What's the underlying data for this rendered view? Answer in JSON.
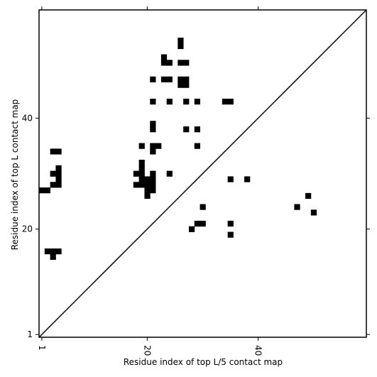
{
  "chart_data": {
    "type": "heatmap",
    "xlabel": "Residue index of top L/5 contact map",
    "ylabel": "Residue index of top L contact map",
    "xlim": [
      0.5,
      59.5
    ],
    "ylim": [
      0.5,
      59.5
    ],
    "x_ticks": [
      {
        "value": 1,
        "label": "1"
      },
      {
        "value": 20,
        "label": "20"
      },
      {
        "value": 40,
        "label": "40"
      }
    ],
    "y_ticks": [
      {
        "value": 1,
        "label": "1"
      },
      {
        "value": 20,
        "label": "20"
      },
      {
        "value": 40,
        "label": "40"
      }
    ],
    "diagonal": true,
    "cell_color": "#000000",
    "background": "#ffffff",
    "upper_cells": [
      [
        26,
        54
      ],
      [
        26,
        53
      ],
      [
        23,
        51
      ],
      [
        23,
        50
      ],
      [
        24,
        50
      ],
      [
        26,
        50
      ],
      [
        27,
        50
      ],
      [
        21,
        47
      ],
      [
        23,
        47
      ],
      [
        24,
        47
      ],
      [
        26,
        47
      ],
      [
        27,
        47
      ],
      [
        26,
        46
      ],
      [
        27,
        46
      ],
      [
        21,
        43
      ],
      [
        24,
        43
      ],
      [
        27,
        43
      ],
      [
        29,
        43
      ],
      [
        34,
        43
      ],
      [
        35,
        43
      ],
      [
        21,
        39
      ],
      [
        21,
        38
      ],
      [
        27,
        38
      ],
      [
        29,
        38
      ],
      [
        19,
        35
      ],
      [
        21,
        35
      ],
      [
        22,
        35
      ],
      [
        29,
        35
      ],
      [
        3,
        34
      ],
      [
        4,
        34
      ],
      [
        21,
        34
      ],
      [
        19,
        32
      ],
      [
        4,
        31
      ],
      [
        19,
        31
      ],
      [
        3,
        30
      ],
      [
        4,
        30
      ],
      [
        18,
        30
      ],
      [
        19,
        30
      ],
      [
        21,
        30
      ],
      [
        24,
        30
      ],
      [
        4,
        29
      ],
      [
        19,
        29
      ],
      [
        20,
        29
      ],
      [
        21,
        29
      ],
      [
        35,
        29
      ],
      [
        38,
        29
      ],
      [
        3,
        28
      ],
      [
        4,
        28
      ],
      [
        18,
        28
      ],
      [
        19,
        28
      ],
      [
        20,
        28
      ],
      [
        21,
        28
      ],
      [
        1,
        27
      ],
      [
        2,
        27
      ],
      [
        20,
        27
      ],
      [
        21,
        27
      ],
      [
        20,
        26
      ]
    ],
    "lower_cells": [
      [
        49,
        26
      ],
      [
        30,
        24
      ],
      [
        47,
        24
      ],
      [
        50,
        23
      ],
      [
        29,
        21
      ],
      [
        30,
        21
      ],
      [
        35,
        21
      ],
      [
        28,
        20
      ],
      [
        35,
        19
      ],
      [
        2,
        16
      ],
      [
        3,
        16
      ],
      [
        4,
        16
      ],
      [
        3,
        15
      ]
    ]
  }
}
